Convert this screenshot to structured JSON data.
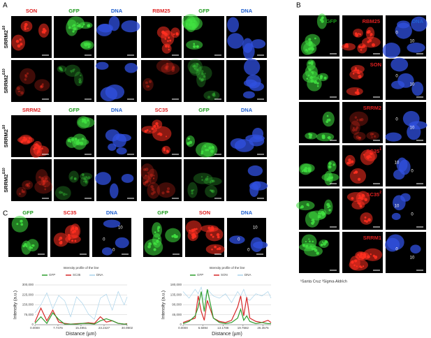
{
  "panel_labels": [
    "A",
    "B",
    "C"
  ],
  "panel_a": {
    "sections": [
      {
        "groups": [
          [
            "SON",
            "GFP",
            "DNA"
          ],
          [
            "RBM25",
            "GFP",
            "DNA"
          ]
        ],
        "row_labels": [
          {
            "name": "SRRM2",
            "sup": "Δ0"
          },
          {
            "name": "SRRM2",
            "sup": "Δ10"
          }
        ]
      },
      {
        "groups": [
          [
            "SRRM2",
            "GFP",
            "DNA"
          ],
          [
            "SC35",
            "GFP",
            "DNA"
          ]
        ],
        "row_labels": [
          {
            "name": "SRRM2",
            "sup": "Δ0"
          },
          {
            "name": "SRRM2",
            "sup": "Δ10"
          }
        ]
      }
    ]
  },
  "panel_b": {
    "headers": [
      "GFP",
      "RBM25",
      "DNA"
    ],
    "row_labels": [
      {
        "name": "SON"
      },
      {
        "name": "SRRM2"
      },
      {
        "name": "SC35",
        "sup": "1"
      },
      {
        "name": "SC35",
        "sup": "2"
      },
      {
        "name": "SRRM1"
      }
    ],
    "nucleus_labels": [
      [
        "0",
        "10"
      ],
      [
        "0",
        "10"
      ],
      [
        "0",
        "10"
      ],
      [
        "10",
        "0"
      ],
      [
        "10",
        "0"
      ],
      [
        "0",
        "10"
      ]
    ],
    "footnote": "¹Santa Cruz ²Sigma-Aldrich"
  },
  "panel_c": {
    "groups": [
      [
        "GFP",
        "SC35",
        "DNA"
      ],
      [
        "GFP",
        "SON",
        "DNA"
      ]
    ],
    "nucleus_labels": [
      [
        "10",
        "0",
        "0"
      ],
      [
        "10",
        "0",
        "0"
      ]
    ]
  },
  "chart_data": [
    {
      "type": "line",
      "title": "Intensity profile of the line",
      "xlabel": "Distance (µm)",
      "ylabel": "Intensity (a.u.)",
      "x": [
        0,
        2,
        4,
        6,
        8,
        10,
        12,
        14,
        16,
        18,
        20,
        22,
        24,
        26,
        28,
        30,
        31
      ],
      "series": [
        {
          "name": "GFP",
          "color": "#2e9e2e",
          "values": [
            10000,
            60000,
            10000,
            90000,
            40000,
            5000,
            5000,
            5000,
            10000,
            10000,
            5000,
            30000,
            45000,
            30000,
            10000,
            5000,
            5000
          ]
        },
        {
          "name": "SC35",
          "color": "#d62728",
          "values": [
            20000,
            125000,
            30000,
            110000,
            20000,
            10000,
            5000,
            8000,
            10000,
            15000,
            10000,
            60000,
            20000,
            30000,
            10000,
            5000,
            8000
          ]
        },
        {
          "name": "DNA",
          "color": "#a9d3ea",
          "values": [
            90000,
            150000,
            240000,
            120000,
            220000,
            180000,
            60000,
            210000,
            160000,
            80000,
            40000,
            200000,
            230000,
            110000,
            250000,
            150000,
            210000
          ]
        }
      ],
      "xlim": [
        0,
        31
      ],
      "xticks": [
        {
          "value": 0,
          "label": "0.0000"
        },
        7.7476,
        15.4951,
        23.2427,
        30.9902
      ],
      "ylim": [
        0,
        300000
      ],
      "yticks": [
        0,
        {
          "value": 75000,
          "label": "75,000"
        },
        {
          "value": 150000,
          "label": "150,000"
        },
        {
          "value": 225000,
          "label": "225,000"
        },
        {
          "value": 300000,
          "label": "300,000"
        }
      ],
      "grid": true,
      "legend": "top"
    },
    {
      "type": "line",
      "title": "Intensity profile of the line",
      "xlabel": "Distance (µm)",
      "ylabel": "Intensity (a.u.)",
      "x": [
        0,
        2,
        4,
        5,
        6,
        7,
        8,
        10,
        12,
        14,
        16,
        18,
        19,
        20,
        21,
        22,
        24,
        26,
        28,
        29
      ],
      "series": [
        {
          "name": "GFP",
          "color": "#2e9e2e",
          "values": [
            5000,
            15000,
            40000,
            80000,
            150000,
            60000,
            160000,
            30000,
            10000,
            5000,
            10000,
            30000,
            70000,
            20000,
            40000,
            15000,
            5000,
            10000,
            5000,
            5000
          ]
        },
        {
          "name": "SON",
          "color": "#d62728",
          "values": [
            10000,
            20000,
            30000,
            130000,
            60000,
            20000,
            110000,
            30000,
            15000,
            10000,
            20000,
            80000,
            130000,
            40000,
            125000,
            30000,
            15000,
            10000,
            20000,
            10000
          ]
        },
        {
          "name": "DNA",
          "color": "#a9d3ea",
          "values": [
            150000,
            120000,
            160000,
            140000,
            170000,
            110000,
            160000,
            130000,
            120000,
            140000,
            100000,
            150000,
            130000,
            160000,
            120000,
            110000,
            140000,
            130000,
            150000,
            120000
          ]
        }
      ],
      "xlim": [
        0,
        29
      ],
      "xticks": [
        {
          "value": 0,
          "label": "0.0000"
        },
        6.5894,
        13.1788,
        19.7682,
        26.3576
      ],
      "ylim": [
        0,
        180000
      ],
      "yticks": [
        0,
        {
          "value": 45000,
          "label": "45,000"
        },
        {
          "value": 90000,
          "label": "90,000"
        },
        {
          "value": 135000,
          "label": "135,000"
        },
        {
          "value": 180000,
          "label": "180,000"
        }
      ],
      "grid": true,
      "legend": "top"
    }
  ]
}
